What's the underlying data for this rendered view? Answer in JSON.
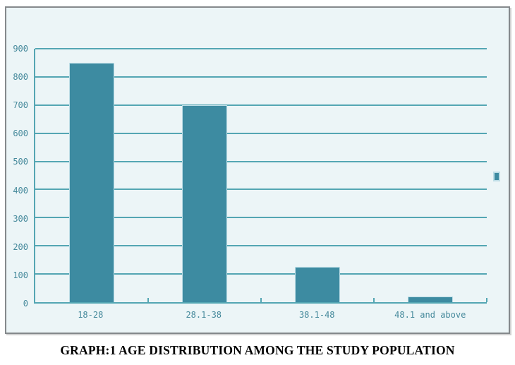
{
  "title": "GRAPH:1 AGE DISTRIBUTION AMONG THE STUDY POPULATION",
  "chart_data": {
    "type": "bar",
    "categories": [
      "18-28",
      "28.1-38",
      "38.1-48",
      "48.1 and above"
    ],
    "values": [
      850,
      700,
      125,
      20
    ],
    "title": "GRAPH:1 AGE DISTRIBUTION AMONG THE STUDY POPULATION",
    "xlabel": "",
    "ylabel": "",
    "ylim": [
      0,
      900
    ],
    "y_ticks": [
      900,
      800,
      700,
      600,
      500,
      400,
      300,
      200,
      100,
      0
    ],
    "grid": "horizontal-only",
    "legend": {
      "visible": true,
      "position": "right-middle",
      "marker": "square",
      "labels": []
    }
  },
  "colors": {
    "bar_fill": "#3d8ba1",
    "bar_edge": "#bddde6",
    "grid_line": "#54a6b3",
    "axis_text": "#45899b",
    "frame_bg": "#ecf5f7",
    "frame_border": "#85898c",
    "title_color": "#000000"
  }
}
